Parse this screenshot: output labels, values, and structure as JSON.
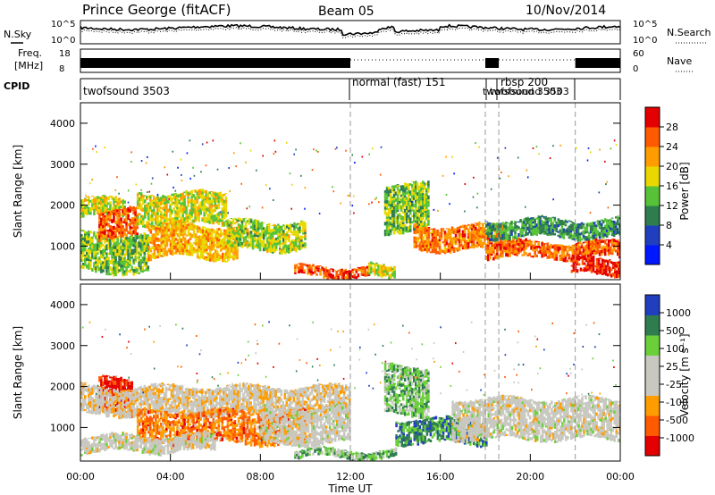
{
  "header": {
    "station": "Prince George (fitACF)",
    "beam": "Beam 05",
    "date": "10/Nov/2014"
  },
  "strip": {
    "nsky_label": "N.Sky",
    "nsearch_label": "N.Search",
    "freq_label_1": "Freq.",
    "freq_label_2": "[MHz]",
    "nave_label": "Nave",
    "cpid_label": "CPID",
    "noise_ticks_left": [
      "10^5",
      "10^0"
    ],
    "noise_ticks_right": [
      "10^5",
      "10^0"
    ],
    "freq_ticks": [
      "18",
      "8"
    ],
    "nave_ticks": [
      "60",
      "0"
    ]
  },
  "cpid_segments": [
    {
      "label": "twofsound 3503",
      "start_hour": 0
    },
    {
      "label": "normal (fast) 151",
      "start_hour": 12
    },
    {
      "label": "twofsound 3503",
      "start_hour": 18
    },
    {
      "label": "rbsp 200",
      "start_hour": 18.6
    },
    {
      "label": "twofsound 3503",
      "start_hour": 22
    }
  ],
  "colors": {
    "power": [
      "#0018ff",
      "#1f3fbe",
      "#2e7d4f",
      "#57c237",
      "#e8d800",
      "#ff9d00",
      "#ff5a00",
      "#e40000"
    ],
    "velocity": [
      "#e40000",
      "#ff5a00",
      "#ff9d00",
      "#c8c8c0",
      "#c8c8c0",
      "#6bcf3a",
      "#2e7d4f",
      "#1f3fbe"
    ]
  },
  "chart_data": [
    {
      "type": "heatmap",
      "title": "Power",
      "xlabel": "",
      "ylabel": "Slant Range [km]",
      "xlim": [
        0,
        24
      ],
      "ylim": [
        180,
        4500
      ],
      "yticks": [
        "1000",
        "2000",
        "3000",
        "4000"
      ],
      "colorbar_label": "Power [dB]",
      "colorbar_ticks": [
        "4",
        "8",
        "12",
        "16",
        "20",
        "24",
        "28"
      ],
      "colorbar_range": [
        0,
        30
      ],
      "bands": [
        {
          "t0": 0.0,
          "t1": 2.0,
          "r0": 1700,
          "r1": 2150,
          "level": 0.55
        },
        {
          "t0": 0.0,
          "t1": 3.0,
          "r0": 350,
          "r1": 1300,
          "level": 0.45
        },
        {
          "t0": 0.8,
          "t1": 2.5,
          "r0": 1200,
          "r1": 1900,
          "level": 0.8
        },
        {
          "t0": 2.5,
          "t1": 6.5,
          "r0": 1500,
          "r1": 2300,
          "level": 0.55
        },
        {
          "t0": 3.0,
          "t1": 7.0,
          "r0": 700,
          "r1": 1500,
          "level": 0.65
        },
        {
          "t0": 6.5,
          "t1": 10.0,
          "r0": 900,
          "r1": 1600,
          "level": 0.5
        },
        {
          "t0": 9.5,
          "t1": 12.8,
          "r0": 250,
          "r1": 500,
          "level": 0.85
        },
        {
          "t0": 12.8,
          "t1": 14.0,
          "r0": 250,
          "r1": 550,
          "level": 0.55
        },
        {
          "t0": 13.5,
          "t1": 15.5,
          "r0": 1300,
          "r1": 2500,
          "level": 0.45
        },
        {
          "t0": 14.8,
          "t1": 19.0,
          "r0": 900,
          "r1": 1500,
          "level": 0.75
        },
        {
          "t0": 18.0,
          "t1": 24.0,
          "r0": 1200,
          "r1": 1650,
          "level": 0.35
        },
        {
          "t0": 18.0,
          "t1": 24.0,
          "r0": 700,
          "r1": 1100,
          "level": 0.8
        },
        {
          "t0": 21.8,
          "t1": 24.0,
          "r0": 300,
          "r1": 700,
          "level": 0.9
        }
      ]
    },
    {
      "type": "heatmap",
      "title": "Velocity",
      "xlabel": "Time UT",
      "ylabel": "Slant Range [km]",
      "xlim": [
        0,
        24
      ],
      "ylim": [
        180,
        4500
      ],
      "xticks": [
        "00:00",
        "04:00",
        "08:00",
        "12:00",
        "16:00",
        "20:00",
        "00:00"
      ],
      "yticks": [
        "1000",
        "2000",
        "3000",
        "4000"
      ],
      "colorbar_label": "Velocity [m s⁻¹]",
      "colorbar_ticks": [
        "-1000",
        "-500",
        "-100",
        "-25",
        "25",
        "100",
        "500",
        "1000"
      ],
      "bands": [
        {
          "t0": 0.8,
          "t1": 2.3,
          "r0": 1300,
          "r1": 2200,
          "level": 0.05
        },
        {
          "t0": 0.0,
          "t1": 12.0,
          "r0": 1300,
          "r1": 2000,
          "level": 0.45
        },
        {
          "t0": 2.5,
          "t1": 10.0,
          "r0": 600,
          "r1": 1400,
          "level": 0.25
        },
        {
          "t0": 0.0,
          "t1": 6.0,
          "r0": 400,
          "r1": 800,
          "level": 0.5
        },
        {
          "t0": 8.0,
          "t1": 12.0,
          "r0": 600,
          "r1": 1500,
          "level": 0.5
        },
        {
          "t0": 9.5,
          "t1": 14.0,
          "r0": 250,
          "r1": 450,
          "level": 0.68
        },
        {
          "t0": 13.5,
          "t1": 15.5,
          "r0": 1300,
          "r1": 2500,
          "level": 0.68
        },
        {
          "t0": 14.0,
          "t1": 18.0,
          "r0": 600,
          "r1": 1200,
          "level": 0.8
        },
        {
          "t0": 16.5,
          "t1": 24.0,
          "r0": 700,
          "r1": 1700,
          "level": 0.5
        }
      ]
    }
  ]
}
